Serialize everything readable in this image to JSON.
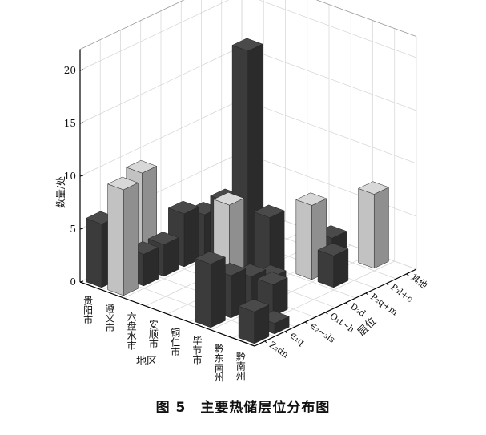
{
  "caption": "图 5　主要热储层位分布图",
  "chart_data": {
    "type": "bar3d",
    "title": "",
    "xlabel": "地区",
    "ylabel": "层位",
    "zlabel": "数量/处",
    "zlim": [
      0,
      22
    ],
    "zticks": [
      0,
      5,
      10,
      15,
      20
    ],
    "grid": true,
    "regions": [
      "贵阳市",
      "遵义市",
      "六盘水市",
      "安顺市",
      "铜仁市",
      "毕节市",
      "黔东南州",
      "黔南州"
    ],
    "layers": [
      "Z₂dn",
      "∈₁q",
      "∈₂~₃ls",
      "O₁t~h",
      "D₂d",
      "P₂q+m",
      "P₃l+c",
      "其他"
    ],
    "colors": {
      "dark": "#3a3a3a",
      "light": "#b9b9b9"
    },
    "bars": [
      {
        "region": "贵阳市",
        "layer": "Z₂dn",
        "value": 6,
        "tone": "dark"
      },
      {
        "region": "贵阳市",
        "layer": "∈₂~₃ls",
        "value": 9,
        "tone": "light"
      },
      {
        "region": "遵义市",
        "layer": "Z₂dn",
        "value": 10,
        "tone": "light"
      },
      {
        "region": "遵义市",
        "layer": "∈₁q",
        "value": 3,
        "tone": "dark"
      },
      {
        "region": "遵义市",
        "layer": "∈₂~₃ls",
        "value": 3,
        "tone": "dark"
      },
      {
        "region": "遵义市",
        "layer": "O₁t~h",
        "value": 5,
        "tone": "dark"
      },
      {
        "region": "遵义市",
        "layer": "D₂d",
        "value": 4,
        "tone": "dark"
      },
      {
        "region": "遵义市",
        "layer": "P₂q+m",
        "value": 3,
        "tone": "dark"
      },
      {
        "region": "六盘水市",
        "layer": "D₂d",
        "value": 6,
        "tone": "dark"
      },
      {
        "region": "安顺市",
        "layer": "D₂d",
        "value": 21,
        "tone": "dark"
      },
      {
        "region": "铜仁市",
        "layer": "∈₂~₃ls",
        "value": 9,
        "tone": "light"
      },
      {
        "region": "铜仁市",
        "layer": "D₂d",
        "value": 6,
        "tone": "dark"
      },
      {
        "region": "毕节市",
        "layer": "Z₂dn",
        "value": 6,
        "tone": "dark"
      },
      {
        "region": "毕节市",
        "layer": "∈₁q",
        "value": 4,
        "tone": "dark"
      },
      {
        "region": "毕节市",
        "layer": "∈₂~₃ls",
        "value": 3,
        "tone": "dark"
      },
      {
        "region": "毕节市",
        "layer": "O₁t~h",
        "value": 2,
        "tone": "dark"
      },
      {
        "region": "毕节市",
        "layer": "P₂q+m",
        "value": 7,
        "tone": "light"
      },
      {
        "region": "毕节市",
        "layer": "P₃l+c",
        "value": 3,
        "tone": "dark"
      },
      {
        "region": "黔东南州",
        "layer": "∈₂~₃ls",
        "value": 3,
        "tone": "dark"
      },
      {
        "region": "黔东南州",
        "layer": "P₂q+m",
        "value": 3,
        "tone": "dark"
      },
      {
        "region": "黔东南州",
        "layer": "其他",
        "value": 7,
        "tone": "light"
      },
      {
        "region": "黔南州",
        "layer": "Z₂dn",
        "value": 3,
        "tone": "dark"
      },
      {
        "region": "黔南州",
        "layer": "∈₁q",
        "value": 1,
        "tone": "dark"
      }
    ]
  }
}
